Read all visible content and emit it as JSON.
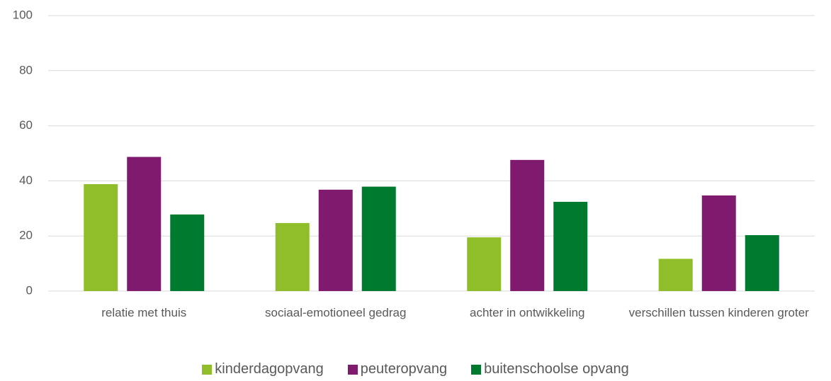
{
  "chart_data": {
    "type": "bar",
    "categories": [
      "relatie met thuis",
      "sociaal-emotioneel gedrag",
      "achter in ontwikkeling",
      "verschillen tussen kinderen groter"
    ],
    "series": [
      {
        "name": "kinderdagopvang",
        "color": "#8fbe2a",
        "values": [
          38.8,
          24.7,
          19.5,
          11.7
        ]
      },
      {
        "name": "peuteropvang",
        "color": "#7f1a6e",
        "values": [
          48.7,
          36.8,
          47.6,
          34.7
        ]
      },
      {
        "name": "buitenschoolse opvang",
        "color": "#007a2e",
        "values": [
          27.8,
          37.9,
          32.4,
          20.3
        ]
      }
    ],
    "ylim": [
      0,
      100
    ],
    "yticks": [
      0,
      20,
      40,
      60,
      80,
      100
    ],
    "grid": true,
    "legend": "bottom"
  }
}
